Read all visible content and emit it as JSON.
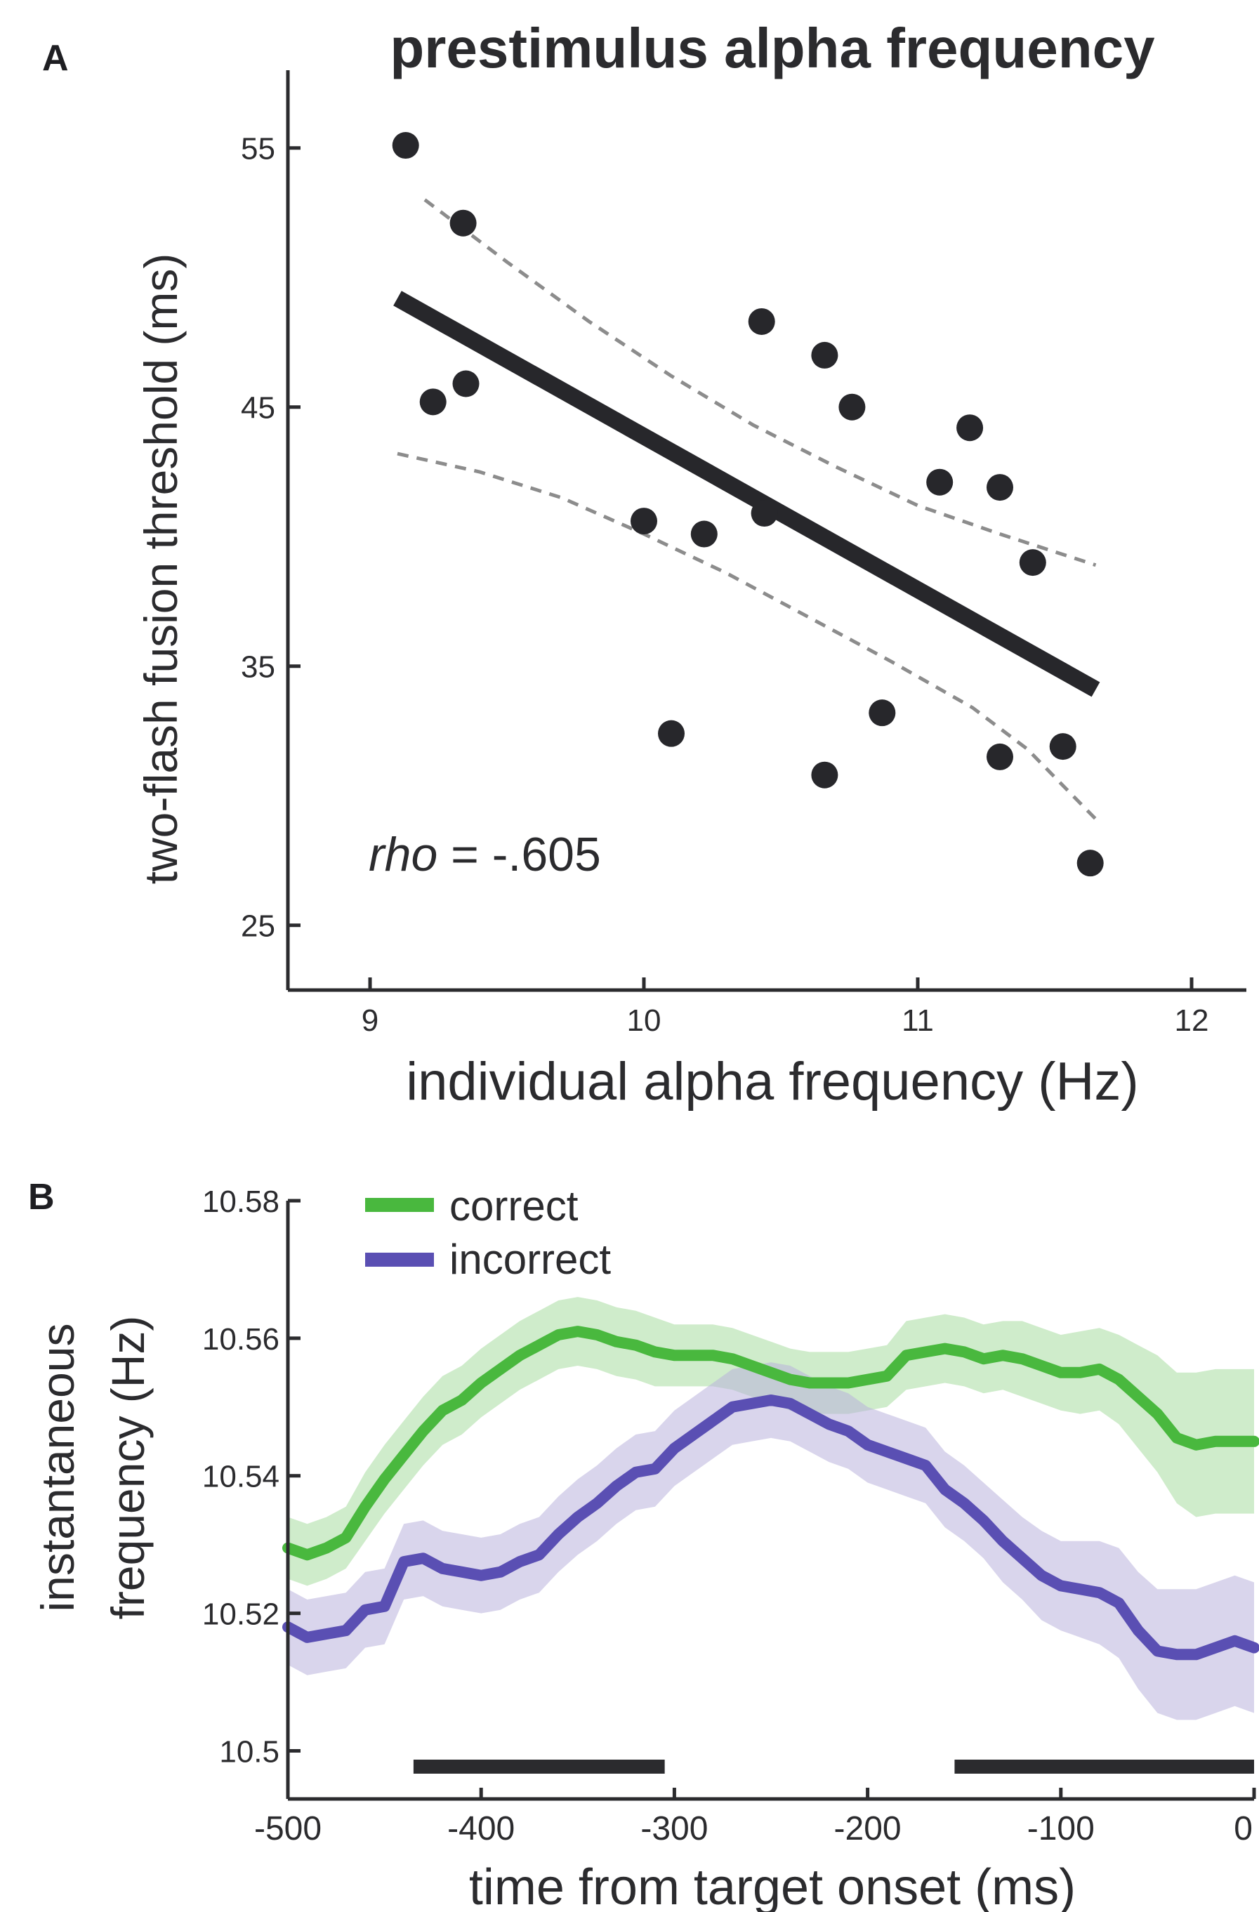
{
  "panels": {
    "a": {
      "letter": "A"
    },
    "b": {
      "letter": "B"
    }
  },
  "colors": {
    "axis": "#2b2b2e",
    "points": "#27272b",
    "fit": "#27272b",
    "ci": "#8c8c8c",
    "correct": "#49b83e",
    "correct_band": "#a8dca0",
    "incorrect": "#5a4fb3",
    "incorrect_band": "#b9b3dc",
    "sig_bar": "#2b2b2e"
  },
  "chart_data": [
    {
      "type": "scatter",
      "title": "prestimulus alpha frequency",
      "xlabel": "individual alpha frequency (Hz)",
      "ylabel": "two-flash fusion threshold (ms)",
      "xlim": [
        8.7,
        12.2
      ],
      "ylim": [
        22.5,
        58
      ],
      "xticks": [
        9,
        10,
        11,
        12
      ],
      "xtick_labels": [
        "9",
        "10",
        "11",
        "12"
      ],
      "yticks": [
        25,
        35,
        45,
        55
      ],
      "ytick_labels": [
        "25",
        "35",
        "45",
        "55"
      ],
      "grid": false,
      "points": [
        {
          "x": 9.13,
          "y": 55.1
        },
        {
          "x": 9.34,
          "y": 52.1
        },
        {
          "x": 9.23,
          "y": 45.2
        },
        {
          "x": 9.35,
          "y": 45.9
        },
        {
          "x": 10.0,
          "y": 40.6
        },
        {
          "x": 10.22,
          "y": 40.1
        },
        {
          "x": 10.1,
          "y": 32.4
        },
        {
          "x": 10.43,
          "y": 48.3
        },
        {
          "x": 10.44,
          "y": 40.9
        },
        {
          "x": 10.66,
          "y": 47.0
        },
        {
          "x": 10.76,
          "y": 45.0
        },
        {
          "x": 10.66,
          "y": 30.8
        },
        {
          "x": 10.87,
          "y": 33.2
        },
        {
          "x": 11.08,
          "y": 42.1
        },
        {
          "x": 11.19,
          "y": 44.2
        },
        {
          "x": 11.3,
          "y": 41.9
        },
        {
          "x": 11.3,
          "y": 31.5
        },
        {
          "x": 11.42,
          "y": 39.0
        },
        {
          "x": 11.53,
          "y": 31.9
        },
        {
          "x": 11.63,
          "y": 27.4
        }
      ],
      "fit_line": {
        "x": [
          9.1,
          11.65
        ],
        "y": [
          49.2,
          34.1
        ]
      },
      "ci_upper": {
        "x": [
          9.2,
          9.5,
          9.8,
          10.1,
          10.4,
          10.7,
          11.0,
          11.3,
          11.65
        ],
        "y": [
          53.0,
          50.6,
          48.3,
          46.2,
          44.3,
          42.7,
          41.2,
          40.1,
          38.9
        ]
      },
      "ci_lower": {
        "x": [
          9.1,
          9.4,
          9.7,
          10.0,
          10.3,
          10.6,
          10.9,
          11.2,
          11.4,
          11.65
        ],
        "y": [
          43.2,
          42.5,
          41.5,
          40.1,
          38.6,
          36.9,
          35.2,
          33.4,
          31.8,
          29.1
        ]
      },
      "annotation": {
        "italic": "rho",
        "text": " = -.605"
      }
    },
    {
      "type": "line",
      "xlabel": "time from target onset (ms)",
      "ylabel_lines": [
        "instantaneous",
        "frequency (Hz)"
      ],
      "xlim": [
        -500,
        0
      ],
      "ylim": [
        10.493,
        10.58
      ],
      "xticks": [
        -500,
        -400,
        -300,
        -200,
        -100,
        0
      ],
      "xtick_labels": [
        "-500",
        "-400",
        "-300",
        "-200",
        "-100",
        "0"
      ],
      "yticks": [
        10.5,
        10.52,
        10.54,
        10.56,
        10.58
      ],
      "ytick_labels": [
        "10.5",
        "10.52",
        "10.54",
        "10.56",
        "10.58"
      ],
      "legend_position": "top-left",
      "x": [
        -500,
        -490,
        -480,
        -470,
        -460,
        -450,
        -440,
        -430,
        -420,
        -410,
        -400,
        -390,
        -380,
        -370,
        -360,
        -350,
        -340,
        -330,
        -320,
        -310,
        -300,
        -290,
        -280,
        -270,
        -260,
        -250,
        -240,
        -230,
        -220,
        -210,
        -200,
        -190,
        -180,
        -170,
        -160,
        -150,
        -140,
        -130,
        -120,
        -110,
        -100,
        -90,
        -80,
        -70,
        -60,
        -50,
        -40,
        -30,
        -20,
        -10,
        0
      ],
      "series": [
        {
          "name": "correct",
          "values": [
            10.5295,
            10.5285,
            10.5295,
            10.531,
            10.5355,
            10.5395,
            10.543,
            10.5465,
            10.5495,
            10.551,
            10.5535,
            10.5555,
            10.5575,
            10.559,
            10.5605,
            10.561,
            10.5605,
            10.5595,
            10.559,
            10.558,
            10.5575,
            10.5575,
            10.5575,
            10.557,
            10.556,
            10.555,
            10.554,
            10.5535,
            10.5535,
            10.5535,
            10.554,
            10.5545,
            10.5575,
            10.558,
            10.5585,
            10.558,
            10.557,
            10.5575,
            10.557,
            10.556,
            10.555,
            10.555,
            10.5555,
            10.554,
            10.5515,
            10.549,
            10.5455,
            10.5445,
            10.545,
            10.545,
            10.545
          ],
          "band": [
            0.0045,
            0.0045,
            0.0045,
            0.0045,
            0.005,
            0.005,
            0.005,
            0.005,
            0.005,
            0.005,
            0.005,
            0.005,
            0.005,
            0.005,
            0.005,
            0.005,
            0.005,
            0.005,
            0.005,
            0.005,
            0.0045,
            0.0045,
            0.0045,
            0.0045,
            0.0045,
            0.0045,
            0.0045,
            0.0045,
            0.0045,
            0.0045,
            0.0045,
            0.0045,
            0.005,
            0.005,
            0.005,
            0.005,
            0.005,
            0.005,
            0.0055,
            0.0055,
            0.0055,
            0.006,
            0.006,
            0.0065,
            0.0075,
            0.0085,
            0.0095,
            0.0105,
            0.0105,
            0.0105,
            0.0105
          ]
        },
        {
          "name": "incorrect",
          "values": [
            10.518,
            10.5165,
            10.517,
            10.5175,
            10.5205,
            10.521,
            10.5275,
            10.528,
            10.5265,
            10.526,
            10.5255,
            10.526,
            10.5275,
            10.5285,
            10.5315,
            10.534,
            10.536,
            10.5385,
            10.5405,
            10.541,
            10.544,
            10.546,
            10.548,
            10.55,
            10.5505,
            10.551,
            10.5505,
            10.549,
            10.5475,
            10.5465,
            10.5445,
            10.5435,
            10.5425,
            10.5415,
            10.538,
            10.536,
            10.5335,
            10.5305,
            10.528,
            10.5255,
            10.524,
            10.5235,
            10.523,
            10.5215,
            10.5175,
            10.5145,
            10.514,
            10.514,
            10.515,
            10.516,
            10.515
          ],
          "band": [
            0.0055,
            0.0055,
            0.0055,
            0.0055,
            0.0055,
            0.0055,
            0.0055,
            0.0055,
            0.0055,
            0.0055,
            0.0055,
            0.0055,
            0.0055,
            0.0055,
            0.0055,
            0.0055,
            0.0055,
            0.0055,
            0.0055,
            0.0055,
            0.0055,
            0.0055,
            0.0055,
            0.0055,
            0.0055,
            0.0055,
            0.0055,
            0.0055,
            0.0055,
            0.0055,
            0.0055,
            0.0055,
            0.0055,
            0.0055,
            0.0055,
            0.0055,
            0.0055,
            0.006,
            0.006,
            0.0065,
            0.0065,
            0.007,
            0.0075,
            0.008,
            0.0085,
            0.009,
            0.0095,
            0.0095,
            0.0095,
            0.0095,
            0.0095
          ]
        }
      ],
      "significance_bars": [
        {
          "start": -435,
          "end": -305
        },
        {
          "start": -155,
          "end": 0
        }
      ]
    }
  ]
}
